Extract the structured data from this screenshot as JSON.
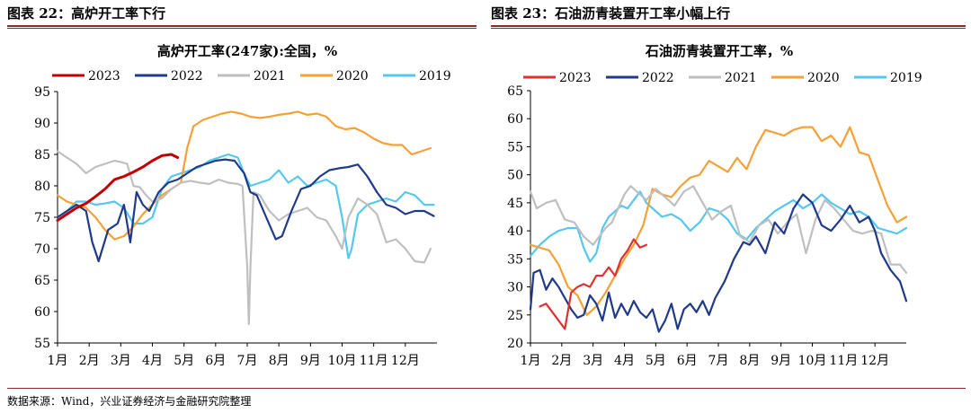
{
  "figures": [
    {
      "title": "图表 22：高炉开工率下行"
    },
    {
      "title": "图表 23：石油沥青装置开工率小幅上行"
    }
  ],
  "source": "数据来源：Wind，兴业证券经济与金融研究院整理",
  "series_colors": {
    "2023": "#c00000",
    "2022": "#1f3a8a",
    "2021": "#bfbfbf",
    "2020": "#f6a035",
    "2019": "#54c8f0"
  },
  "chart_data": [
    {
      "type": "line",
      "title": "高炉开工率(247家):全国，%",
      "x_tick_labels": [
        "1月",
        "2月",
        "3月",
        "4月",
        "5月",
        "6月",
        "7月",
        "8月",
        "9月",
        "10月",
        "11月",
        "12月"
      ],
      "ylim": [
        55,
        95
      ],
      "yticks": [
        55,
        60,
        65,
        70,
        75,
        80,
        85,
        90,
        95
      ],
      "grid": false,
      "legend": "top",
      "series": [
        {
          "name": "2023",
          "color": "#c00000",
          "width": 3,
          "x": [
            1,
            1.3,
            1.6,
            1.9,
            2.2,
            2.5,
            2.8,
            3.1,
            3.4,
            3.7,
            4.0,
            4.3,
            4.6,
            4.8
          ],
          "y": [
            74.5,
            75.5,
            76.5,
            77.2,
            78.3,
            79.5,
            81.0,
            81.5,
            82.2,
            83.0,
            84.0,
            84.8,
            85.0,
            84.5
          ]
        },
        {
          "name": "2022",
          "color": "#1f3a8a",
          "width": 2.2,
          "x": [
            1,
            1.3,
            1.6,
            1.9,
            2.1,
            2.3,
            2.6,
            2.9,
            3.1,
            3.3,
            3.5,
            3.7,
            3.9,
            4.2,
            4.5,
            4.8,
            5.1,
            5.4,
            5.7,
            6.0,
            6.3,
            6.6,
            6.9,
            7.1,
            7.3,
            7.6,
            7.9,
            8.1,
            8.4,
            8.7,
            9.0,
            9.3,
            9.6,
            9.9,
            10.2,
            10.5,
            10.8,
            11.1,
            11.4,
            11.7,
            12.0,
            12.3,
            12.6,
            12.9
          ],
          "y": [
            75.0,
            76.0,
            77.0,
            76.0,
            71.0,
            68.0,
            73.0,
            74.0,
            77.0,
            71.0,
            79.0,
            77.0,
            76.0,
            79.0,
            80.5,
            81.0,
            82.0,
            83.0,
            83.5,
            84.0,
            84.2,
            84.0,
            82.0,
            79.0,
            78.5,
            75.0,
            71.5,
            72.0,
            76.0,
            79.5,
            80.0,
            81.5,
            82.5,
            82.8,
            83.0,
            83.4,
            81.5,
            79.0,
            77.0,
            76.5,
            75.5,
            76.0,
            76.0,
            75.2
          ]
        },
        {
          "name": "2021",
          "color": "#bfbfbf",
          "width": 2.2,
          "x": [
            1,
            1.3,
            1.6,
            1.9,
            2.2,
            2.5,
            2.8,
            3.0,
            3.2,
            3.4,
            3.6,
            3.8,
            4.0,
            4.3,
            4.6,
            4.9,
            5.2,
            5.5,
            5.8,
            6.1,
            6.4,
            6.7,
            6.85,
            7.0,
            7.05,
            7.1,
            7.2,
            7.4,
            7.7,
            8.0,
            8.3,
            8.6,
            8.9,
            9.2,
            9.5,
            9.8,
            10.0,
            10.2,
            10.5,
            10.8,
            11.1,
            11.4,
            11.7,
            12.0,
            12.3,
            12.6,
            12.8
          ],
          "y": [
            85.5,
            84.5,
            83.5,
            82.0,
            83.0,
            83.5,
            84.0,
            83.8,
            83.5,
            80.0,
            79.8,
            78.5,
            77.5,
            78.0,
            79.5,
            80.5,
            80.8,
            80.5,
            80.3,
            81.0,
            80.5,
            80.3,
            80.0,
            67.0,
            58.0,
            67.0,
            79.0,
            78.5,
            76.0,
            74.5,
            75.5,
            76.0,
            76.5,
            75.0,
            74.5,
            72.0,
            70.0,
            75.0,
            78.0,
            77.0,
            75.5,
            71.0,
            71.5,
            70.0,
            68.0,
            67.8,
            70.0
          ]
        },
        {
          "name": "2020",
          "color": "#f6a035",
          "width": 2.2,
          "x": [
            1,
            1.3,
            1.6,
            1.9,
            2.2,
            2.5,
            2.8,
            3.1,
            3.4,
            3.7,
            4.0,
            4.3,
            4.6,
            4.9,
            5.1,
            5.3,
            5.6,
            5.9,
            6.2,
            6.5,
            6.8,
            7.1,
            7.4,
            7.7,
            8.0,
            8.3,
            8.6,
            8.9,
            9.2,
            9.5,
            9.8,
            10.1,
            10.4,
            10.7,
            11.0,
            11.3,
            11.6,
            11.9,
            12.2,
            12.5,
            12.8
          ],
          "y": [
            78.5,
            77.5,
            77.0,
            76.5,
            75.0,
            73.0,
            71.5,
            72.0,
            73.5,
            75.5,
            77.0,
            78.5,
            79.5,
            80.5,
            86.0,
            89.5,
            90.5,
            91.0,
            91.5,
            91.8,
            91.5,
            91.0,
            90.8,
            91.0,
            91.3,
            91.5,
            91.8,
            91.3,
            91.5,
            91.0,
            89.5,
            89.0,
            89.2,
            88.5,
            87.5,
            86.8,
            86.5,
            86.5,
            85.0,
            85.5,
            86.0
          ]
        },
        {
          "name": "2019",
          "color": "#54c8f0",
          "width": 2.2,
          "x": [
            1,
            1.3,
            1.6,
            1.9,
            2.2,
            2.5,
            2.8,
            3.1,
            3.4,
            3.7,
            4.0,
            4.3,
            4.6,
            4.9,
            5.2,
            5.5,
            5.8,
            6.1,
            6.4,
            6.7,
            6.9,
            7.1,
            7.4,
            7.7,
            8.0,
            8.3,
            8.6,
            8.9,
            9.2,
            9.5,
            9.8,
            10.0,
            10.2,
            10.3,
            10.5,
            10.8,
            11.1,
            11.4,
            11.7,
            12.0,
            12.3,
            12.6,
            12.9
          ],
          "y": [
            75.0,
            76.0,
            77.5,
            77.5,
            77.0,
            77.2,
            77.5,
            76.5,
            74.0,
            74.0,
            75.0,
            79.5,
            81.5,
            82.0,
            82.5,
            83.0,
            84.0,
            84.5,
            85.0,
            84.5,
            82.0,
            80.0,
            80.5,
            81.0,
            82.5,
            80.5,
            81.5,
            80.0,
            80.5,
            81.0,
            80.0,
            75.0,
            68.5,
            70.0,
            75.5,
            77.0,
            77.5,
            78.0,
            77.5,
            79.0,
            78.5,
            77.0,
            77.0
          ]
        }
      ]
    },
    {
      "type": "line",
      "title": "石油沥青装置开工率，%",
      "x_tick_labels": [
        "1月",
        "2月",
        "3月",
        "4月",
        "5月",
        "6月",
        "7月",
        "8月",
        "9月",
        "10月",
        "11月",
        "12月"
      ],
      "ylim": [
        20,
        65
      ],
      "yticks": [
        20,
        25,
        30,
        35,
        40,
        45,
        50,
        55,
        60,
        65
      ],
      "grid": false,
      "legend": "top",
      "series": [
        {
          "name": "2023",
          "color": "#e03030",
          "width": 2.2,
          "x": [
            1.3,
            1.5,
            1.7,
            1.9,
            2.1,
            2.3,
            2.5,
            2.7,
            2.9,
            3.1,
            3.3,
            3.5,
            3.7,
            3.9,
            4.1,
            4.3,
            4.5,
            4.7
          ],
          "y": [
            26.5,
            27.0,
            25.5,
            24.0,
            22.5,
            29.0,
            30.0,
            30.5,
            30.0,
            32.0,
            32.0,
            33.5,
            32.0,
            35.0,
            36.5,
            38.5,
            37.0,
            37.5
          ]
        },
        {
          "name": "2022",
          "color": "#1f3a8a",
          "width": 2.2,
          "x": [
            1,
            1.1,
            1.3,
            1.5,
            1.7,
            1.9,
            2.1,
            2.3,
            2.5,
            2.7,
            2.9,
            3.1,
            3.3,
            3.5,
            3.7,
            3.9,
            4.1,
            4.3,
            4.5,
            4.7,
            4.9,
            5.1,
            5.3,
            5.5,
            5.7,
            5.9,
            6.1,
            6.3,
            6.5,
            6.7,
            6.9,
            7.2,
            7.5,
            7.8,
            8.0,
            8.2,
            8.5,
            8.8,
            9.1,
            9.4,
            9.7,
            10.0,
            10.3,
            10.6,
            10.9,
            11.2,
            11.5,
            11.8,
            12.0,
            12.2,
            12.5,
            12.8,
            13.0
          ],
          "y": [
            26.0,
            32.5,
            33.0,
            29.5,
            31.5,
            30.0,
            28.0,
            26.0,
            24.5,
            25.0,
            28.5,
            27.0,
            24.0,
            29.0,
            24.5,
            27.0,
            25.0,
            27.5,
            25.5,
            24.5,
            26.0,
            22.0,
            24.0,
            27.0,
            22.5,
            26.0,
            27.0,
            25.5,
            27.5,
            25.0,
            28.0,
            31.0,
            35.0,
            38.0,
            37.5,
            39.0,
            36.0,
            41.5,
            39.5,
            44.0,
            46.5,
            45.0,
            41.0,
            40.0,
            42.0,
            44.5,
            41.5,
            42.5,
            40.0,
            36.0,
            33.0,
            31.0,
            27.5
          ]
        },
        {
          "name": "2021",
          "color": "#bfbfbf",
          "width": 2.2,
          "x": [
            1,
            1.2,
            1.5,
            1.8,
            2.1,
            2.4,
            2.7,
            3.0,
            3.2,
            3.4,
            3.6,
            3.8,
            4.0,
            4.2,
            4.4,
            4.7,
            5.0,
            5.3,
            5.6,
            5.9,
            6.2,
            6.5,
            6.8,
            7.1,
            7.4,
            7.7,
            8.0,
            8.3,
            8.6,
            8.9,
            9.2,
            9.5,
            9.8,
            10.1,
            10.4,
            10.7,
            11.0,
            11.3,
            11.6,
            11.9,
            12.2,
            12.5,
            12.8,
            13.0
          ],
          "y": [
            47.0,
            44.0,
            45.0,
            45.5,
            42.0,
            41.5,
            39.0,
            37.5,
            39.0,
            40.5,
            41.5,
            44.0,
            46.5,
            48.0,
            47.0,
            45.5,
            47.5,
            46.0,
            44.5,
            47.0,
            48.0,
            45.0,
            42.0,
            43.5,
            44.5,
            39.0,
            38.0,
            41.0,
            42.0,
            39.5,
            41.5,
            43.0,
            36.0,
            42.0,
            45.5,
            44.0,
            42.0,
            40.0,
            39.5,
            40.0,
            39.5,
            34.0,
            34.0,
            32.5
          ]
        },
        {
          "name": "2020",
          "color": "#f6a035",
          "width": 2.2,
          "x": [
            1,
            1.3,
            1.6,
            1.9,
            2.2,
            2.5,
            2.8,
            3.1,
            3.4,
            3.7,
            4.0,
            4.3,
            4.6,
            4.9,
            5.2,
            5.5,
            5.8,
            6.1,
            6.4,
            6.7,
            7.0,
            7.3,
            7.6,
            7.9,
            8.2,
            8.5,
            8.8,
            9.1,
            9.4,
            9.7,
            10.0,
            10.3,
            10.6,
            10.9,
            11.2,
            11.5,
            11.8,
            12.1,
            12.4,
            12.7,
            13.0
          ],
          "y": [
            37.5,
            37.0,
            36.5,
            34.0,
            30.0,
            28.5,
            25.0,
            26.5,
            29.0,
            32.0,
            35.0,
            37.5,
            41.0,
            47.5,
            46.5,
            46.0,
            48.0,
            49.5,
            50.0,
            52.5,
            51.5,
            50.5,
            53.0,
            51.0,
            55.0,
            58.0,
            57.5,
            57.0,
            58.0,
            58.5,
            58.5,
            56.0,
            57.0,
            55.0,
            58.5,
            54.0,
            53.5,
            49.0,
            44.5,
            41.5,
            42.5
          ]
        },
        {
          "name": "2019",
          "color": "#54c8f0",
          "width": 2.2,
          "x": [
            1,
            1.3,
            1.6,
            1.9,
            2.2,
            2.5,
            2.7,
            2.9,
            3.1,
            3.3,
            3.5,
            3.7,
            3.9,
            4.1,
            4.3,
            4.5,
            4.7,
            4.9,
            5.2,
            5.5,
            5.8,
            6.1,
            6.4,
            6.7,
            7.0,
            7.3,
            7.6,
            7.9,
            8.2,
            8.5,
            8.8,
            9.1,
            9.4,
            9.7,
            10.0,
            10.3,
            10.6,
            10.9,
            11.2,
            11.5,
            11.8,
            12.1,
            12.4,
            12.7,
            13.0
          ],
          "y": [
            35.5,
            37.5,
            39.0,
            40.0,
            40.5,
            40.5,
            37.0,
            34.5,
            36.0,
            40.5,
            42.5,
            43.5,
            44.5,
            44.0,
            45.5,
            47.0,
            45.0,
            44.0,
            42.5,
            43.0,
            42.0,
            40.0,
            41.5,
            44.0,
            43.5,
            42.0,
            39.5,
            38.5,
            40.5,
            42.0,
            43.5,
            44.5,
            45.5,
            44.0,
            45.0,
            46.5,
            45.0,
            44.0,
            43.0,
            43.5,
            42.5,
            40.5,
            40.0,
            39.5,
            40.5
          ]
        }
      ]
    }
  ]
}
